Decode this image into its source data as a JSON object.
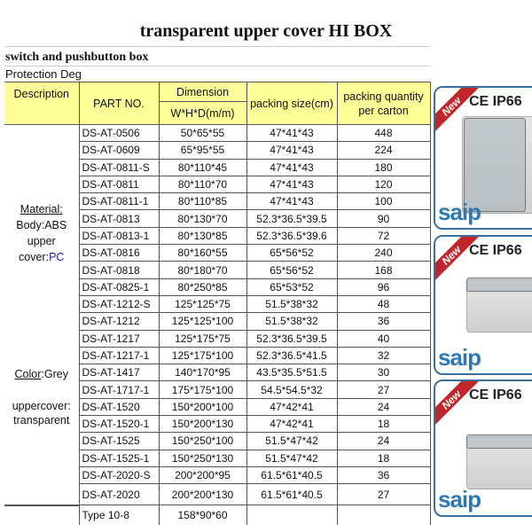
{
  "title": "transparent upper cover HI BOX",
  "subtitle": "switch and pushbutton box",
  "protection": "Protection Deg",
  "headers": {
    "description": "Description",
    "part_no": "PART NO.",
    "dimension": "Dimension",
    "dimension_unit": "W*H*D(m/m)",
    "packing_size": "packing size(cm)",
    "packing_qty": "packing quantity per carton"
  },
  "description": {
    "material_label": "Material:",
    "body": "Body:ABS",
    "upper": "upper",
    "cover_prefix": "cover:",
    "cover_value": "PC",
    "color_label": "Color",
    "color_value": ":Grey",
    "uppercover": "uppercover:",
    "transparent": "transparent"
  },
  "rows": [
    {
      "part": "DS-AT-0506",
      "dim": "50*65*55",
      "size": "47*41*43",
      "qty": "448"
    },
    {
      "part": "DS-AT-0609",
      "dim": "65*95*55",
      "size": "47*41*43",
      "qty": "224"
    },
    {
      "part": "DS-AT-0811-S",
      "dim": "80*110*45",
      "size": "47*41*43",
      "qty": "180"
    },
    {
      "part": "DS-AT-0811",
      "dim": "80*110*70",
      "size": "47*41*43",
      "qty": "120"
    },
    {
      "part": "DS-AT-0811-1",
      "dim": "80*110*85",
      "size": "47*41*43",
      "qty": "100"
    },
    {
      "part": "DS-AT-0813",
      "dim": "80*130*70",
      "size": "52.3*36.5*39.5",
      "qty": "90"
    },
    {
      "part": "DS-AT-0813-1",
      "dim": "80*130*85",
      "size": "52.3*36.5*39.6",
      "qty": "72"
    },
    {
      "part": "DS-AT-0816",
      "dim": "80*160*55",
      "size": "65*56*52",
      "qty": "240"
    },
    {
      "part": "DS-AT-0818",
      "dim": "80*180*70",
      "size": "65*56*52",
      "qty": "168"
    },
    {
      "part": "DS-AT-0825-1",
      "dim": "80*250*85",
      "size": "65*53*52",
      "qty": "96"
    },
    {
      "part": "DS-AT-1212-S",
      "dim": "125*125*75",
      "size": "51.5*38*32",
      "qty": "48"
    },
    {
      "part": "DS-AT-1212",
      "dim": "125*125*100",
      "size": "51.5*38*32",
      "qty": "36"
    },
    {
      "part": "DS-AT-1217",
      "dim": "125*175*75",
      "size": "52.3*36.5*39.5",
      "qty": "40"
    },
    {
      "part": "DS-AT-1217-1",
      "dim": "125*175*100",
      "size": "52.3*36.5*41.5",
      "qty": "32"
    },
    {
      "part": "DS-AT-1417",
      "dim": "140*170*95",
      "size": "43.5*35.5*51.5",
      "qty": "30"
    },
    {
      "part": "DS-AT-1717-1",
      "dim": "175*175*100",
      "size": "54.5*54.5*32",
      "qty": "27"
    },
    {
      "part": "DS-AT-1520",
      "dim": "150*200*100",
      "size": "47*42*41",
      "qty": "24"
    },
    {
      "part": "DS-AT-1520-1",
      "dim": "150*200*130",
      "size": "47*42*41",
      "qty": "18"
    },
    {
      "part": "DS-AT-1525",
      "dim": "150*250*100",
      "size": "51.5*47*42",
      "qty": "24"
    },
    {
      "part": "DS-AT-1525-1",
      "dim": "150*250*130",
      "size": "51.5*47*42",
      "qty": "18"
    },
    {
      "part": "DS-AT-2020-S",
      "dim": "200*200*95",
      "size": "61.5*61*40.5",
      "qty": "36"
    },
    {
      "part": "DS-AT-2020",
      "dim": "200*200*130",
      "size": "61.5*61*40.5",
      "qty": "27"
    }
  ],
  "last_row": {
    "part": "Type 10-8",
    "dim": "158*90*60"
  },
  "panels": [
    {
      "badge": "New",
      "cert": "CE IP66",
      "brand": "saip"
    },
    {
      "badge": "New",
      "cert": "CE IP66",
      "brand": "saip"
    },
    {
      "badge": "New",
      "cert": "CE IP66",
      "brand": "saip"
    }
  ],
  "colors": {
    "header_bg": "#ffff99",
    "badge": "#c0262b",
    "brand": "#2c79b4",
    "pc_text": "#1a1ac8"
  }
}
